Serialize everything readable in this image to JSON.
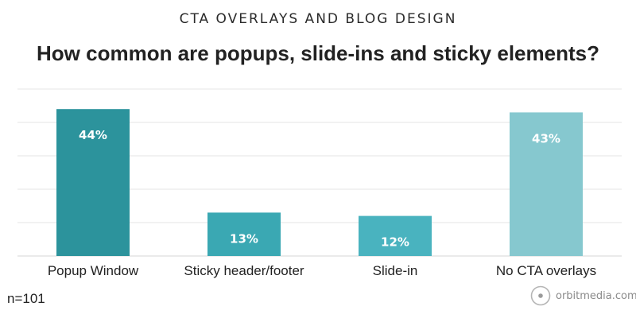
{
  "header": {
    "subtitle": "CTA OVERLAYS AND BLOG DESIGN",
    "title": "How common are popups, slide-ins and sticky elements?"
  },
  "footer": {
    "sample": "n=101",
    "brand": "orbitmedia.com"
  },
  "chart_data": {
    "type": "bar",
    "title": "How common are popups, slide-ins and sticky elements?",
    "subtitle": "CTA OVERLAYS AND BLOG DESIGN",
    "xlabel": "",
    "ylabel": "",
    "ylim": [
      0,
      50
    ],
    "grid": true,
    "categories": [
      "Popup Window",
      "Sticky header/footer",
      "Slide-in",
      "No CTA overlays"
    ],
    "values": [
      44,
      13,
      12,
      43
    ],
    "data_labels": [
      "44%",
      "13%",
      "12%",
      "43%"
    ],
    "colors": [
      "#2c939c",
      "#3aa8b3",
      "#49b3bf",
      "#86c8cf"
    ]
  }
}
